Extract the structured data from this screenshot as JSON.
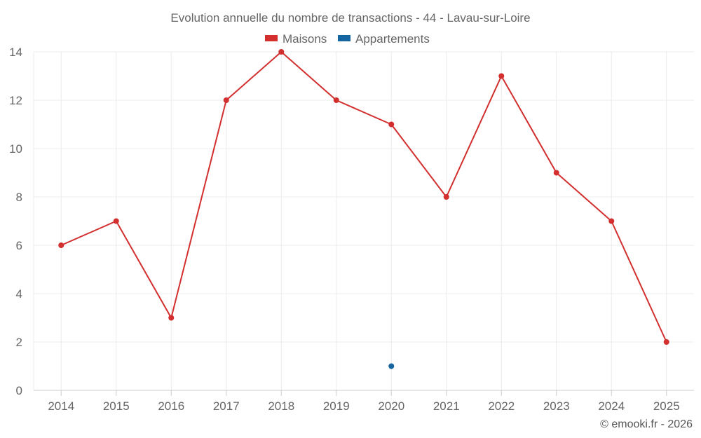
{
  "chart_data": {
    "type": "line",
    "title": "Evolution annuelle du nombre de transactions - 44 - Lavau-sur-Loire",
    "categories": [
      "2014",
      "2015",
      "2016",
      "2017",
      "2018",
      "2019",
      "2020",
      "2021",
      "2022",
      "2023",
      "2024",
      "2025"
    ],
    "series": [
      {
        "name": "Maisons",
        "color": "#d32f2f",
        "values": [
          6,
          7,
          3,
          12,
          14,
          12,
          11,
          8,
          13,
          9,
          7,
          2
        ]
      },
      {
        "name": "Appartements",
        "color": "#1565a0",
        "values": [
          null,
          null,
          null,
          null,
          null,
          null,
          1,
          null,
          null,
          null,
          null,
          null
        ]
      }
    ],
    "ylim": [
      0,
      14
    ],
    "yticks": [
      0,
      2,
      4,
      6,
      8,
      10,
      12,
      14
    ],
    "grid": true,
    "legend": "top-center"
  },
  "credit": "© emooki.fr - 2026"
}
